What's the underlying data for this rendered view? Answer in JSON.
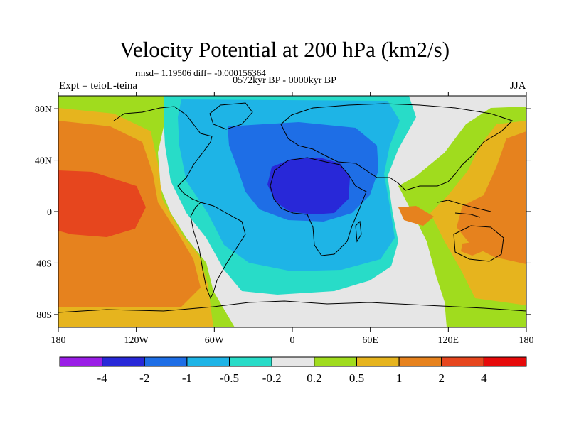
{
  "title": "Velocity Potential at 200 hPa (km2/s)",
  "stats": "rmsd= 1.19506 diff= -0.000156364",
  "period": "0572kyr BP - 0000kyr BP",
  "experiment": "Expt = teioL-teina",
  "season": "JJA",
  "map": {
    "projection": "cylindrical-equidistant",
    "lon_range": [
      -180,
      180
    ],
    "lat_range": [
      -90,
      90
    ],
    "lat_ticks": [
      {
        "lat": 80,
        "label": "80N"
      },
      {
        "lat": 40,
        "label": "40N"
      },
      {
        "lat": 0,
        "label": "0"
      },
      {
        "lat": -40,
        "label": "40S"
      },
      {
        "lat": -80,
        "label": "80S"
      }
    ],
    "lon_ticks": [
      {
        "lon": -180,
        "label": "180"
      },
      {
        "lon": -120,
        "label": "120W"
      },
      {
        "lon": -60,
        "label": "60W"
      },
      {
        "lon": 0,
        "label": "0"
      },
      {
        "lon": 60,
        "label": "60E"
      },
      {
        "lon": 120,
        "label": "120E"
      },
      {
        "lon": 180,
        "label": "180"
      }
    ]
  },
  "colorbar": {
    "labels": [
      "-4",
      "-2",
      "-1",
      "-0.5",
      "-0.2",
      "0.2",
      "0.5",
      "1",
      "2",
      "4"
    ],
    "colors": [
      "#9a1ee6",
      "#2828d8",
      "#1e6ee6",
      "#1eb4e6",
      "#28dcc8",
      "#e6e6e6",
      "#a0dc1e",
      "#e6b41e",
      "#e6821e",
      "#e6461e",
      "#e60a0a"
    ]
  }
}
